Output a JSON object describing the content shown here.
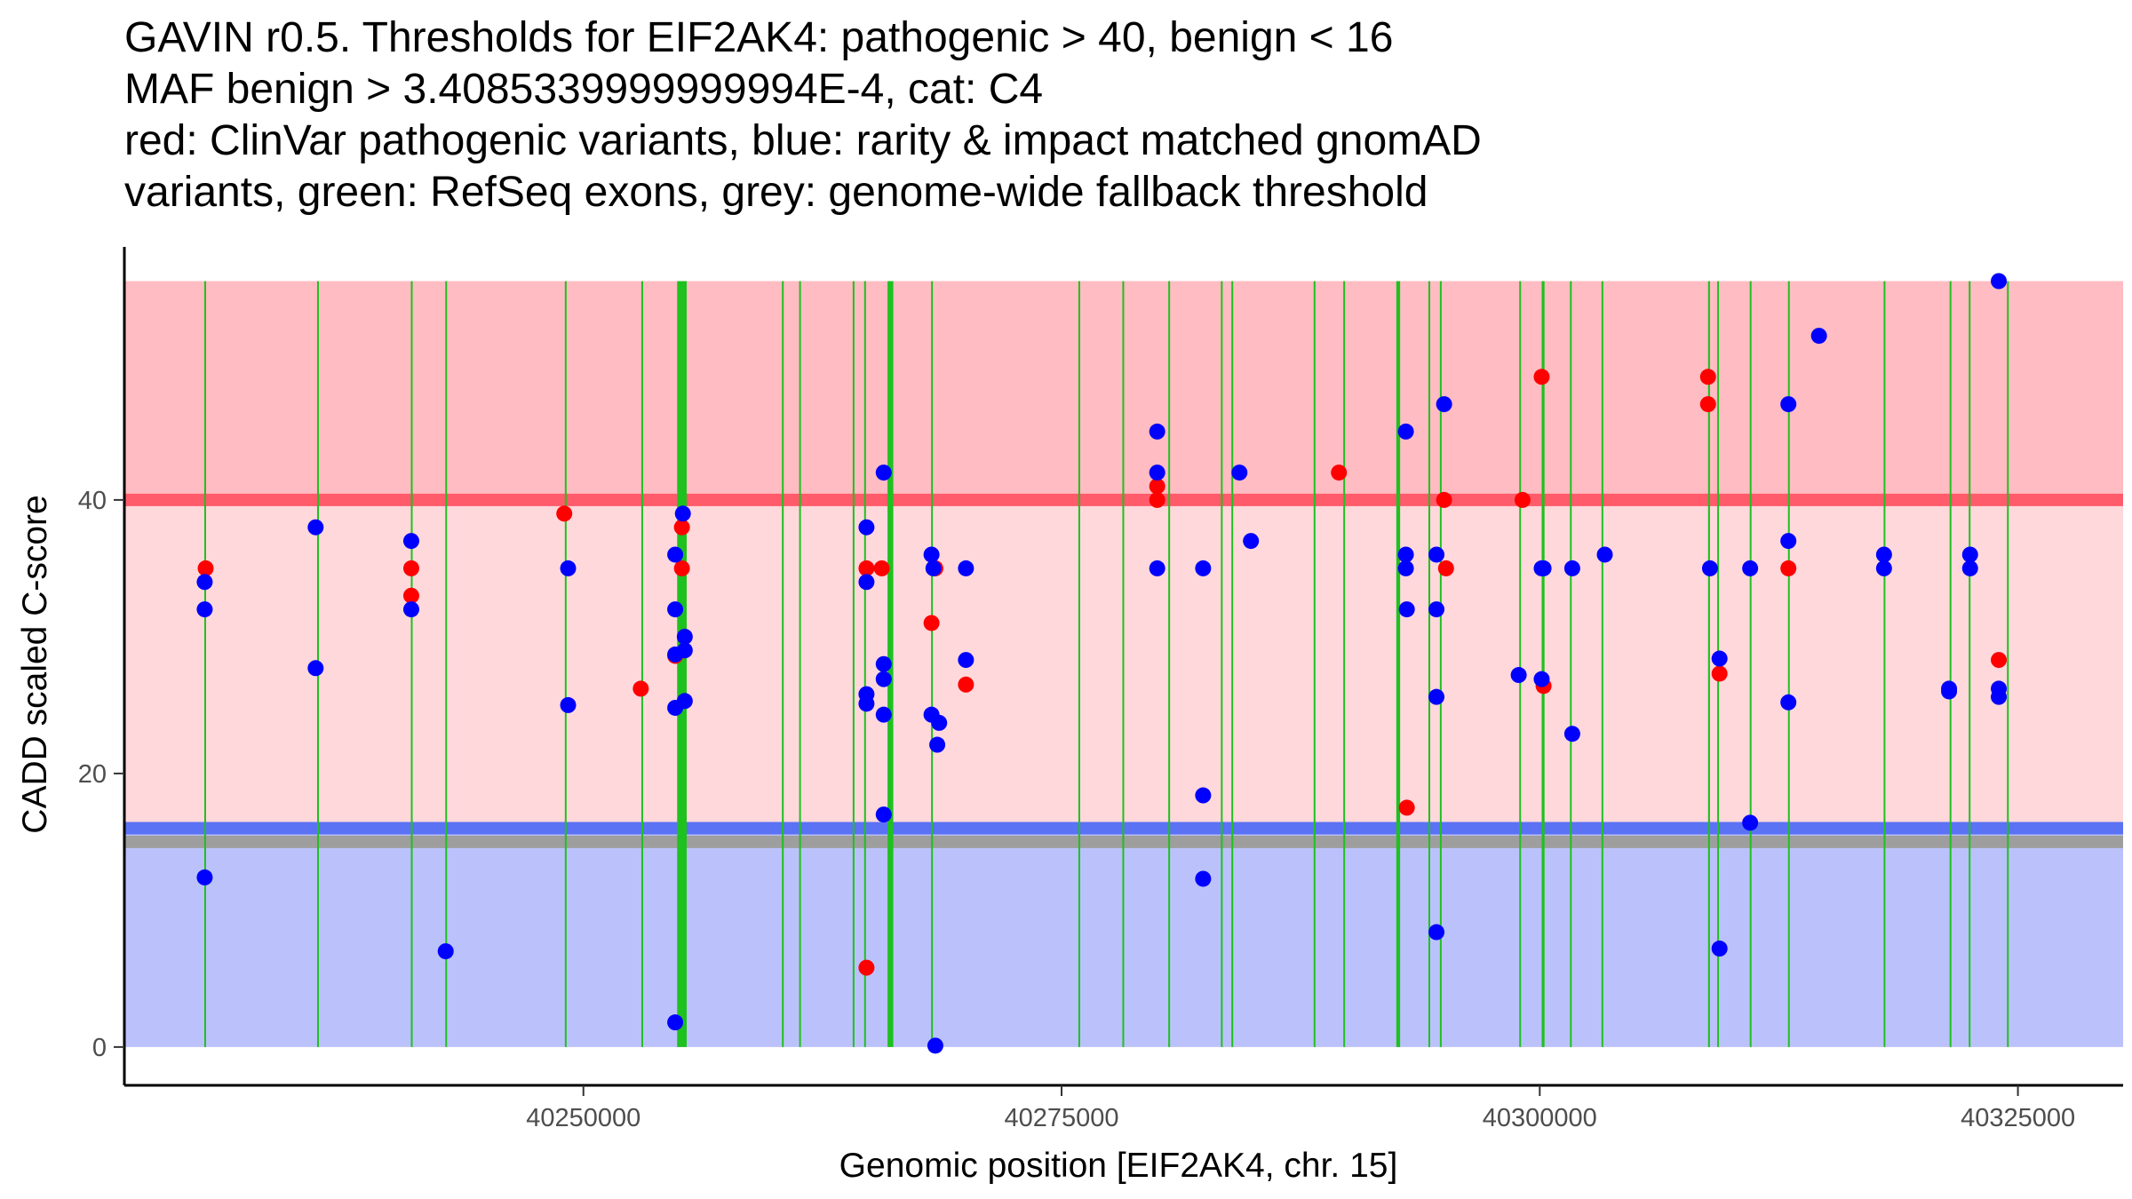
{
  "chart_data": {
    "type": "scatter",
    "title": [
      "GAVIN r0.5. Thresholds for EIF2AK4: pathogenic > 40, benign < 16",
      "MAF benign > 3.4085339999999994E-4, cat: C4",
      "red: ClinVar pathogenic variants, blue: rarity & impact matched gnomAD",
      "variants, green: RefSeq exons, grey: genome-wide fallback threshold"
    ],
    "xlabel": "Genomic position [EIF2AK4, chr. 15]",
    "ylabel": "CADD scaled C-score",
    "xlim": [
      40226000,
      40330500
    ],
    "ylim": [
      -2.8,
      58.5
    ],
    "x_ticks": [
      40250000,
      40275000,
      40300000,
      40325000
    ],
    "x_tick_labels": [
      "40250000",
      "40275000",
      "40300000",
      "40325000"
    ],
    "y_ticks": [
      0,
      20,
      40
    ],
    "y_tick_labels": [
      "0",
      "20",
      "40"
    ],
    "bands": {
      "pathogenic_region": {
        "y0": 40,
        "y1": 56,
        "color": "#ffbcc2"
      },
      "calibrated_region": {
        "y0": 16,
        "y1": 40,
        "color": "#ffd8dc"
      },
      "benign_region": {
        "y0": 0,
        "y1": 16,
        "color": "#bbc2fb"
      }
    },
    "threshold_lines": [
      {
        "name": "pathogenic threshold",
        "y": 40,
        "color": "#ff5b6b"
      },
      {
        "name": "benign threshold",
        "y": 16,
        "color": "#5a72f3"
      },
      {
        "name": "genome-wide fallback threshold",
        "y": 15,
        "color": "#9e9e9e"
      }
    ],
    "exons": [
      {
        "start": 40230200,
        "end": 40230250
      },
      {
        "start": 40236100,
        "end": 40236150
      },
      {
        "start": 40241000,
        "end": 40241050
      },
      {
        "start": 40242800,
        "end": 40242850
      },
      {
        "start": 40249050,
        "end": 40249100
      },
      {
        "start": 40253050,
        "end": 40253100
      },
      {
        "start": 40254900,
        "end": 40255400
      },
      {
        "start": 40260400,
        "end": 40260450
      },
      {
        "start": 40261300,
        "end": 40261350
      },
      {
        "start": 40264100,
        "end": 40264150
      },
      {
        "start": 40264700,
        "end": 40264750
      },
      {
        "start": 40265900,
        "end": 40266200
      },
      {
        "start": 40268200,
        "end": 40268250
      },
      {
        "start": 40275900,
        "end": 40275950
      },
      {
        "start": 40278200,
        "end": 40278250
      },
      {
        "start": 40280600,
        "end": 40280650
      },
      {
        "start": 40283350,
        "end": 40283400
      },
      {
        "start": 40283900,
        "end": 40283950
      },
      {
        "start": 40288200,
        "end": 40288250
      },
      {
        "start": 40289750,
        "end": 40289800
      },
      {
        "start": 40292500,
        "end": 40292700
      },
      {
        "start": 40294200,
        "end": 40294250
      },
      {
        "start": 40294800,
        "end": 40294850
      },
      {
        "start": 40298950,
        "end": 40299000
      },
      {
        "start": 40300100,
        "end": 40300250
      },
      {
        "start": 40301600,
        "end": 40301650
      },
      {
        "start": 40303250,
        "end": 40303300
      },
      {
        "start": 40308800,
        "end": 40308900
      },
      {
        "start": 40309300,
        "end": 40309350
      },
      {
        "start": 40311000,
        "end": 40311050
      },
      {
        "start": 40313000,
        "end": 40313050
      },
      {
        "start": 40318000,
        "end": 40318050
      },
      {
        "start": 40321450,
        "end": 40321500
      },
      {
        "start": 40322450,
        "end": 40322500
      },
      {
        "start": 40324450,
        "end": 40324500
      }
    ],
    "series": [
      {
        "name": "ClinVar pathogenic variants",
        "color": "#ff0000",
        "points": [
          [
            40230250,
            35
          ],
          [
            40241000,
            35
          ],
          [
            40241000,
            33
          ],
          [
            40249000,
            39
          ],
          [
            40253000,
            26.2
          ],
          [
            40254800,
            28.6
          ],
          [
            40255150,
            38
          ],
          [
            40255150,
            35
          ],
          [
            40264800,
            35
          ],
          [
            40264800,
            5.8
          ],
          [
            40265600,
            35
          ],
          [
            40268200,
            31
          ],
          [
            40268400,
            35
          ],
          [
            40270000,
            26.5
          ],
          [
            40280000,
            41
          ],
          [
            40280000,
            40
          ],
          [
            40289500,
            42
          ],
          [
            40293050,
            17.5
          ],
          [
            40295000,
            40
          ],
          [
            40295100,
            35
          ],
          [
            40299100,
            40
          ],
          [
            40300100,
            49
          ],
          [
            40300200,
            26.4
          ],
          [
            40308800,
            49
          ],
          [
            40308800,
            47
          ],
          [
            40309400,
            27.3
          ],
          [
            40313000,
            35
          ],
          [
            40324000,
            28.3
          ]
        ]
      },
      {
        "name": "rarity & impact matched gnomAD variants",
        "color": "#0000ff",
        "points": [
          [
            40230200,
            34
          ],
          [
            40230200,
            32
          ],
          [
            40230200,
            12.4
          ],
          [
            40236000,
            38
          ],
          [
            40236000,
            27.7
          ],
          [
            40241000,
            37
          ],
          [
            40241000,
            32
          ],
          [
            40242800,
            7
          ],
          [
            40249200,
            35
          ],
          [
            40249200,
            25
          ],
          [
            40254800,
            36
          ],
          [
            40254800,
            32
          ],
          [
            40254800,
            28.7
          ],
          [
            40254800,
            24.8
          ],
          [
            40254800,
            1.8
          ],
          [
            40255200,
            39
          ],
          [
            40255300,
            30
          ],
          [
            40255300,
            29
          ],
          [
            40255300,
            25.3
          ],
          [
            40264800,
            38
          ],
          [
            40264800,
            34
          ],
          [
            40264800,
            25.8
          ],
          [
            40264800,
            25.1
          ],
          [
            40265700,
            42
          ],
          [
            40265700,
            28
          ],
          [
            40265700,
            26.9
          ],
          [
            40265700,
            24.3
          ],
          [
            40265700,
            17
          ],
          [
            40268200,
            36
          ],
          [
            40268300,
            35
          ],
          [
            40268200,
            24.3
          ],
          [
            40268400,
            0.1
          ],
          [
            40268500,
            22.1
          ],
          [
            40268600,
            23.7
          ],
          [
            40270000,
            35
          ],
          [
            40270000,
            28.3
          ],
          [
            40280000,
            45
          ],
          [
            40280000,
            42
          ],
          [
            40280000,
            35
          ],
          [
            40282400,
            35
          ],
          [
            40282400,
            18.4
          ],
          [
            40282400,
            12.3
          ],
          [
            40284300,
            42
          ],
          [
            40284900,
            37
          ],
          [
            40293000,
            45
          ],
          [
            40293000,
            36
          ],
          [
            40293000,
            35
          ],
          [
            40293050,
            32
          ],
          [
            40294600,
            36
          ],
          [
            40294600,
            32
          ],
          [
            40294600,
            25.6
          ],
          [
            40294600,
            8.4
          ],
          [
            40295000,
            47
          ],
          [
            40298900,
            27.2
          ],
          [
            40300100,
            35
          ],
          [
            40300200,
            35
          ],
          [
            40300100,
            26.9
          ],
          [
            40301700,
            35
          ],
          [
            40301700,
            22.9
          ],
          [
            40303400,
            36
          ],
          [
            40308900,
            35
          ],
          [
            40309400,
            28.4
          ],
          [
            40309400,
            7.2
          ],
          [
            40311000,
            35
          ],
          [
            40311000,
            16.4
          ],
          [
            40313000,
            47
          ],
          [
            40313000,
            37
          ],
          [
            40313000,
            25.2
          ],
          [
            40314600,
            52
          ],
          [
            40318000,
            36
          ],
          [
            40318000,
            35
          ],
          [
            40321400,
            26.2
          ],
          [
            40321400,
            26
          ],
          [
            40322500,
            36
          ],
          [
            40322500,
            35
          ],
          [
            40324000,
            56
          ],
          [
            40324000,
            26.2
          ],
          [
            40324000,
            25.6
          ]
        ]
      }
    ]
  }
}
